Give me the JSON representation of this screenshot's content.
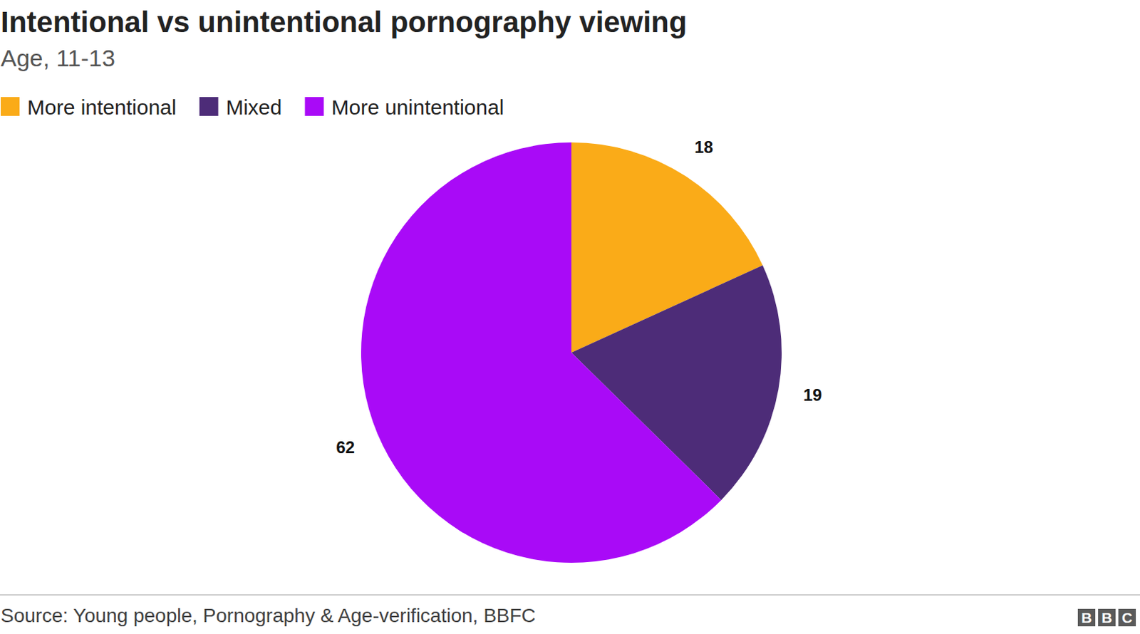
{
  "chart_data": {
    "type": "pie",
    "title": "Intentional vs unintentional pornography viewing",
    "subtitle": "Age, 11-13",
    "categories": [
      "More intentional",
      "Mixed",
      "More unintentional"
    ],
    "values": [
      18,
      19,
      62
    ],
    "colors": [
      "#faab18",
      "#4d2c78",
      "#a90af7"
    ],
    "legend": "top-left",
    "data_labels": true,
    "source": "Source: Young people, Pornography & Age-verification, BBFC",
    "logo": "BBC"
  }
}
